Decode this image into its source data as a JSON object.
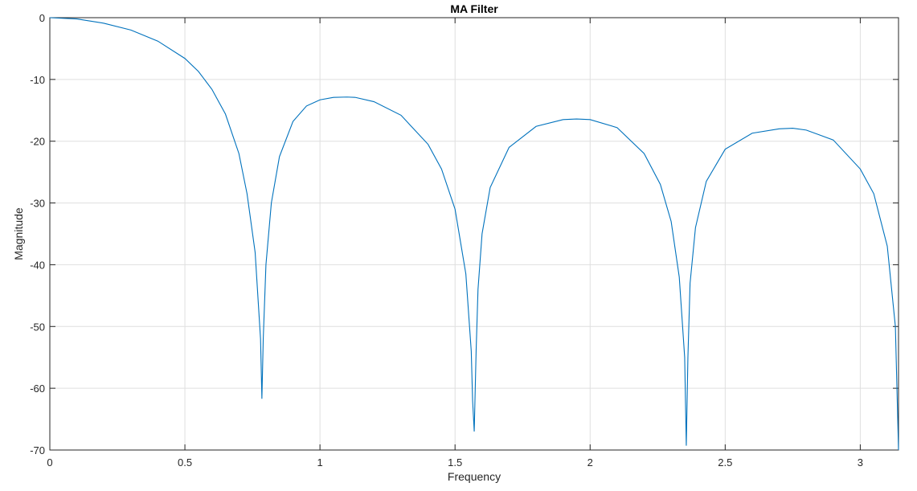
{
  "chart_data": {
    "type": "line",
    "title": "MA Filter",
    "xlabel": "Frequency",
    "ylabel": "Magnitude",
    "xlim": [
      0,
      3.1416
    ],
    "ylim": [
      -70,
      0
    ],
    "grid": true,
    "x_ticks": [
      0,
      0.5,
      1,
      1.5,
      2,
      2.5,
      3
    ],
    "x_tick_labels": [
      "0",
      "0.5",
      "1",
      "1.5",
      "2",
      "2.5",
      "3"
    ],
    "y_ticks": [
      0,
      -10,
      -20,
      -30,
      -40,
      -50,
      -60,
      -70
    ],
    "y_tick_labels": [
      "0",
      "-10",
      "-20",
      "-30",
      "-40",
      "-50",
      "-60",
      "-70"
    ],
    "line_color": "#0072BD",
    "series": [
      {
        "x": [
          0,
          0.1,
          0.2,
          0.3,
          0.4,
          0.5,
          0.55,
          0.6,
          0.65,
          0.7,
          0.73,
          0.76,
          0.78,
          0.785,
          0.79,
          0.8,
          0.82,
          0.85,
          0.9,
          0.95,
          1.0,
          1.05,
          1.1,
          1.13,
          1.2,
          1.3,
          1.4,
          1.45,
          1.5,
          1.54,
          1.56,
          1.565,
          1.571,
          1.578,
          1.585,
          1.6,
          1.63,
          1.7,
          1.8,
          1.9,
          1.95,
          2.0,
          2.1,
          2.2,
          2.26,
          2.3,
          2.33,
          2.35,
          2.356,
          2.362,
          2.37,
          2.39,
          2.43,
          2.5,
          2.6,
          2.7,
          2.75,
          2.8,
          2.9,
          3.0,
          3.05,
          3.1,
          3.13,
          3.1416
        ],
        "y": [
          0,
          -0.2,
          -0.9,
          -2.0,
          -3.8,
          -6.6,
          -8.7,
          -11.6,
          -15.6,
          -22.0,
          -28.5,
          -38.0,
          -52.0,
          -61.7,
          -52.0,
          -40.0,
          -30.0,
          -22.5,
          -16.8,
          -14.3,
          -13.3,
          -12.9,
          -12.85,
          -12.9,
          -13.6,
          -15.8,
          -20.5,
          -24.5,
          -31.0,
          -41.5,
          -54.0,
          -62.0,
          -67.0,
          -54.0,
          -44.0,
          -35.0,
          -27.5,
          -21.0,
          -17.6,
          -16.5,
          -16.4,
          -16.5,
          -17.8,
          -22.0,
          -27.0,
          -33.0,
          -42.0,
          -55.0,
          -69.3,
          -55.0,
          -43.0,
          -34.0,
          -26.5,
          -21.3,
          -18.7,
          -18.0,
          -17.9,
          -18.2,
          -19.8,
          -24.5,
          -28.5,
          -37.0,
          -50.0,
          -70
        ]
      }
    ]
  }
}
